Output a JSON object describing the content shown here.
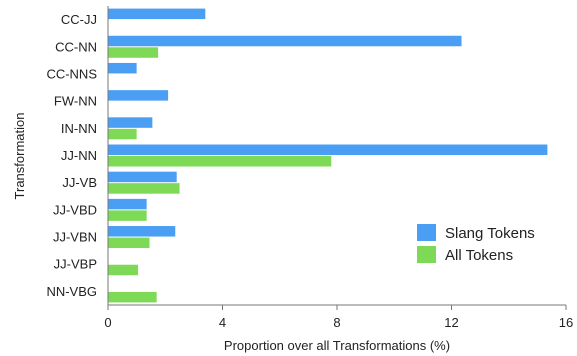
{
  "chart_data": {
    "type": "bar",
    "orientation": "horizontal",
    "categories": [
      "CC-JJ",
      "CC-NN",
      "CC-NNS",
      "FW-NN",
      "IN-NN",
      "JJ-NN",
      "JJ-VB",
      "JJ-VBD",
      "JJ-VBN",
      "JJ-VBP",
      "NN-VBG"
    ],
    "series": [
      {
        "name": "Slang Tokens",
        "color": "#4a9ff5",
        "values": [
          3.4,
          12.35,
          1.0,
          2.1,
          1.55,
          15.35,
          2.4,
          1.35,
          2.35,
          null,
          null
        ]
      },
      {
        "name": "All Tokens",
        "color": "#7ed957",
        "values": [
          null,
          1.75,
          null,
          null,
          1.0,
          7.8,
          2.5,
          1.35,
          1.45,
          1.05,
          1.7
        ]
      }
    ],
    "xlabel": "Proportion over all Transformations (%)",
    "ylabel": "Transformation",
    "xlim": [
      0,
      16
    ],
    "xticks": [
      0,
      4,
      8,
      12,
      16
    ],
    "grid": false,
    "legend_position": "bottom-right"
  }
}
